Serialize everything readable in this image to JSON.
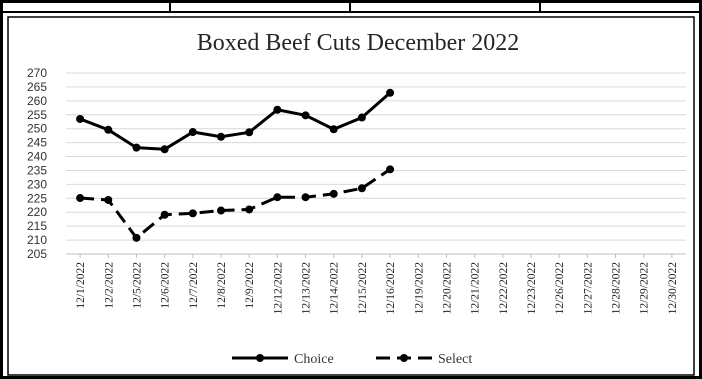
{
  "chart_data": {
    "type": "line",
    "title": "Boxed Beef Cuts December 2022",
    "xlabel": "",
    "ylabel": "",
    "ylim": [
      205,
      270
    ],
    "yticks": [
      205,
      210,
      215,
      220,
      225,
      230,
      235,
      240,
      245,
      250,
      255,
      260,
      265,
      270
    ],
    "grid": true,
    "legend_position": "bottom",
    "categories": [
      "12/1/2022",
      "12/2/2022",
      "12/5/2022",
      "12/6/2022",
      "12/7/2022",
      "12/8/2022",
      "12/9/2022",
      "12/12/2022",
      "12/13/2022",
      "12/14/2022",
      "12/15/2022",
      "12/16/2022",
      "12/19/2022",
      "12/20/2022",
      "12/21/2022",
      "12/22/2022",
      "12/23/2022",
      "12/26/2022",
      "12/27/2022",
      "12/28/2022",
      "12/29/2022",
      "12/30/2022"
    ],
    "series": [
      {
        "name": "Choice",
        "style": "solid",
        "color": "#000000",
        "values": [
          253.5,
          249.6,
          243.2,
          242.6,
          248.8,
          247.1,
          248.7,
          256.8,
          254.8,
          249.8,
          254.0,
          262.9,
          null,
          null,
          null,
          null,
          null,
          null,
          null,
          null,
          null,
          null
        ]
      },
      {
        "name": "Select",
        "style": "dashed",
        "color": "#000000",
        "values": [
          225.1,
          224.4,
          210.8,
          219.1,
          219.6,
          220.6,
          221.0,
          225.4,
          225.4,
          226.6,
          228.6,
          235.4,
          null,
          null,
          null,
          null,
          null,
          null,
          null,
          null,
          null,
          null
        ]
      }
    ]
  }
}
